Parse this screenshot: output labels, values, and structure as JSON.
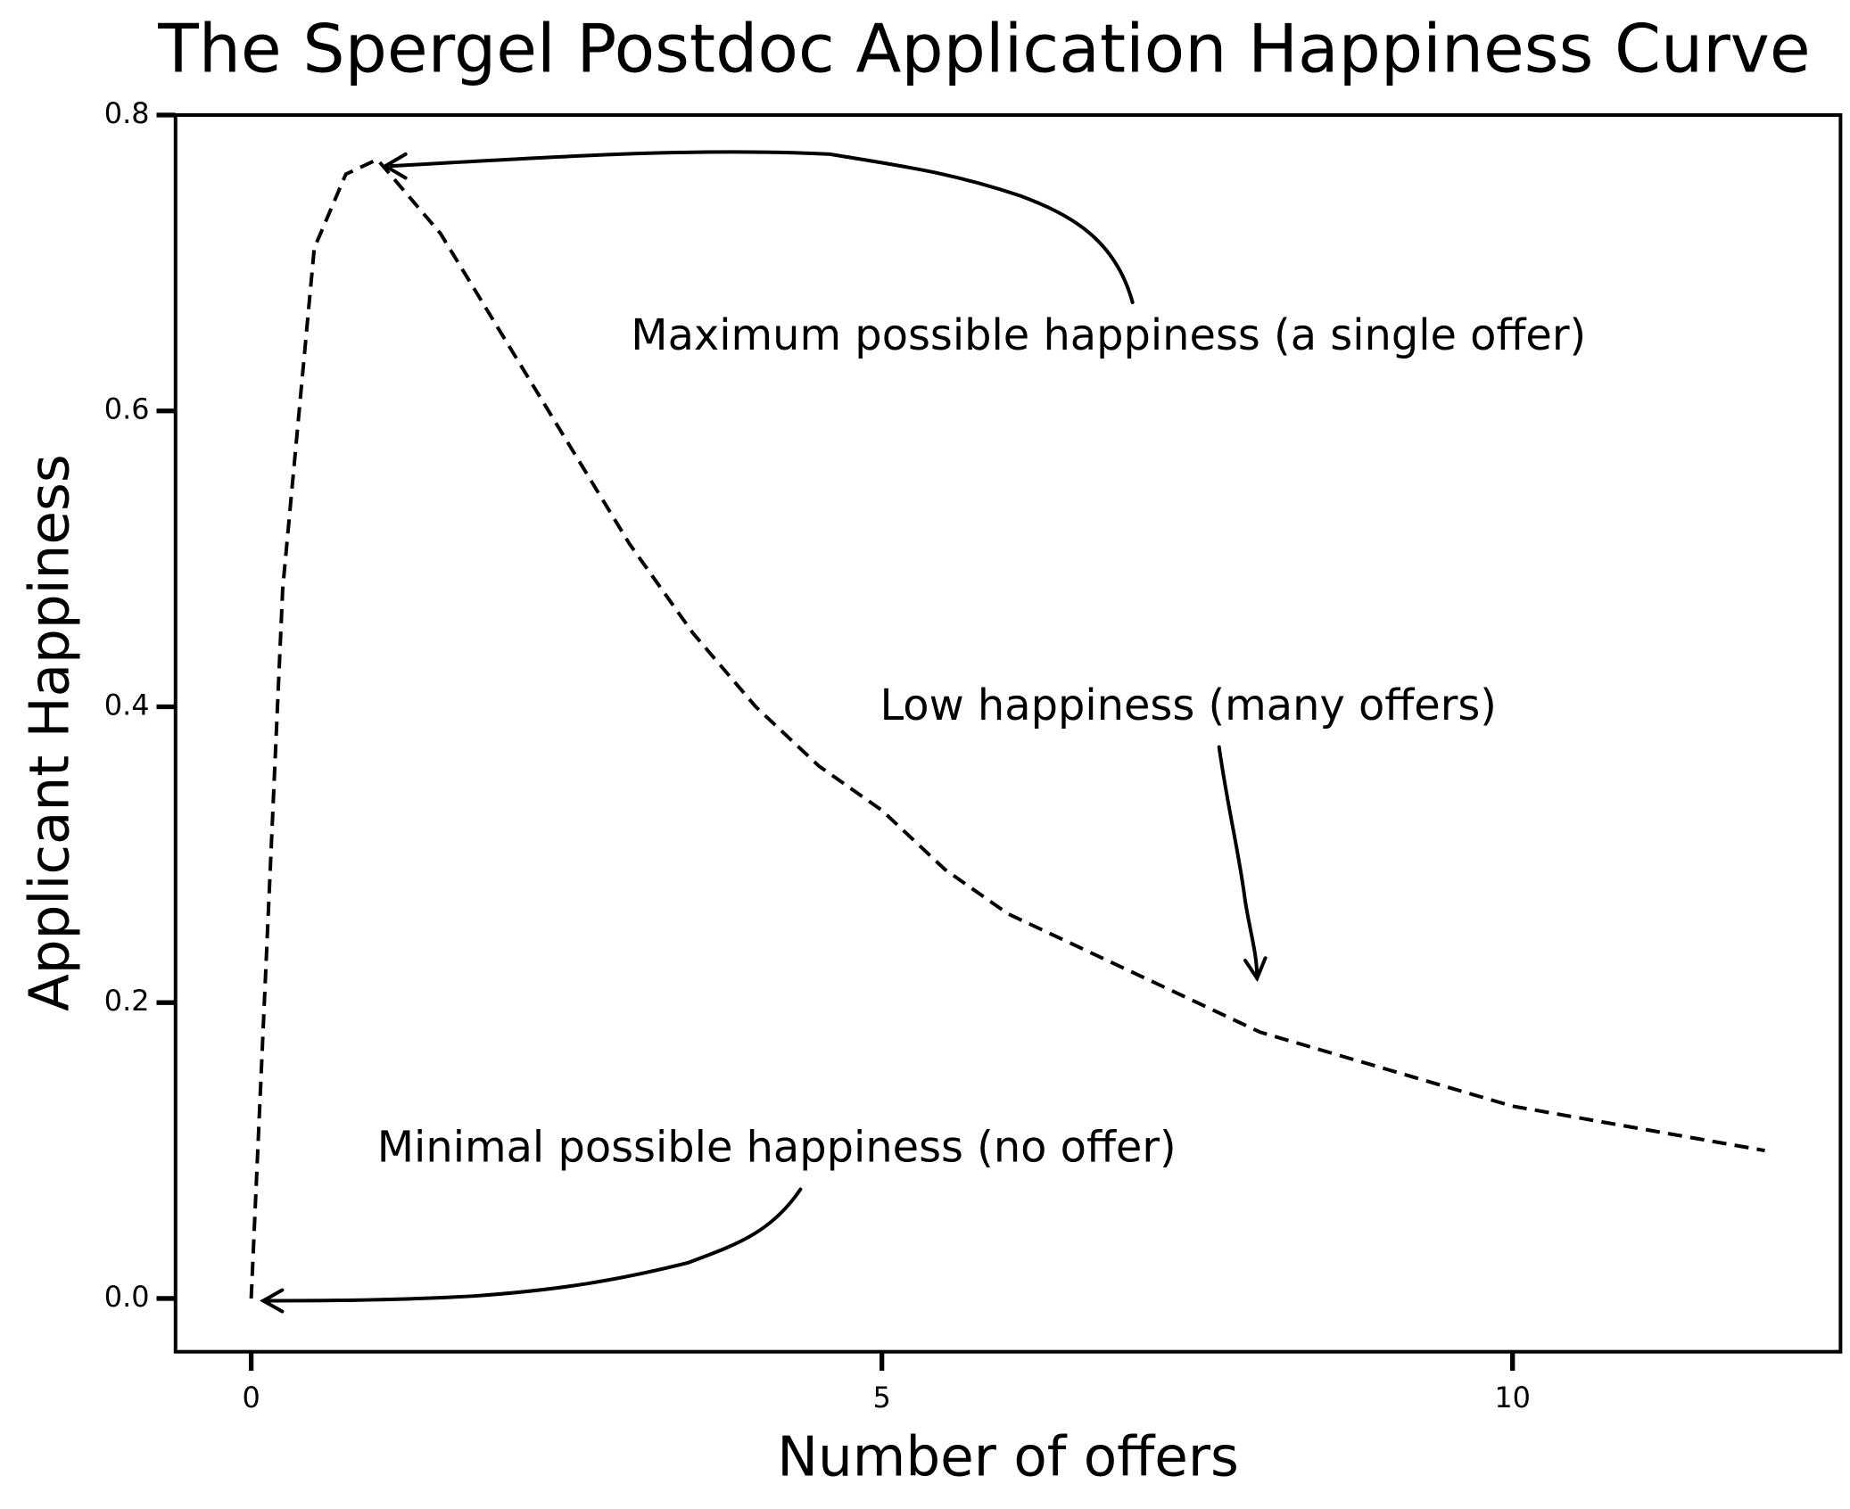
{
  "chart_data": {
    "type": "line",
    "title": "The Spergel Postdoc Application Happiness Curve",
    "xlabel": "Number of offers",
    "ylabel": "Applicant Happiness",
    "x": [
      0,
      0.25,
      0.5,
      0.75,
      1,
      1.5,
      2,
      2.5,
      3,
      3.5,
      4,
      4.5,
      5,
      5.5,
      6,
      6.5,
      7,
      7.5,
      8,
      9,
      10,
      11,
      12
    ],
    "series": [
      {
        "color": "#000000",
        "values": [
          0,
          0.48,
          0.71,
          0.76,
          0.77,
          0.72,
          0.65,
          0.58,
          0.51,
          0.45,
          0.4,
          0.36,
          0.33,
          0.29,
          0.26,
          0.24,
          0.22,
          0.2,
          0.18,
          0.155,
          0.13,
          0.115,
          0.1
        ]
      }
    ],
    "xlim": [
      -0.6,
      12.6
    ],
    "ylim": [
      -0.036,
      0.8
    ],
    "xticks": [
      0,
      5,
      10
    ],
    "yticks": [
      {
        "value": 0,
        "label": "0.0"
      },
      0.2,
      0.4,
      0.6,
      0.8
    ],
    "grid": false,
    "annotations": [
      "Maximum possible happiness (a single offer)",
      "Low happiness (many offers)",
      "Minimal possible happiness (no offer)"
    ]
  }
}
